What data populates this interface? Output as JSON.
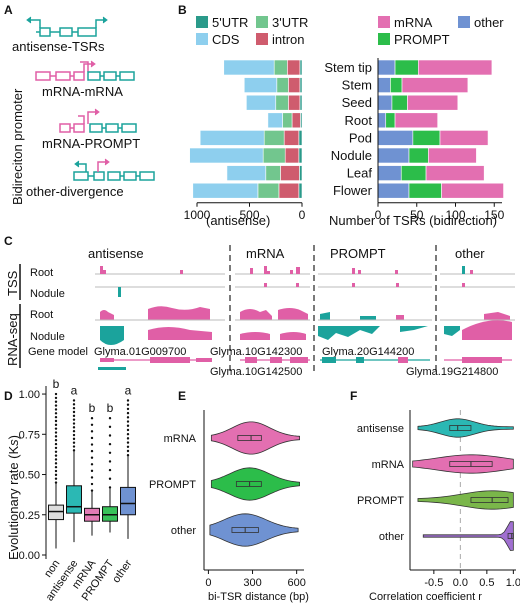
{
  "panels": [
    "A",
    "B",
    "C",
    "D",
    "E",
    "F"
  ],
  "colors": {
    "utr5": "#2a9a8a",
    "utr3": "#72c68e",
    "cds": "#8ecfee",
    "intron": "#cf5c6e",
    "mrna": "#e36fb1",
    "prompt": "#2cbd4a",
    "other": "#6f92d2",
    "teal": "#1ba39c",
    "pink": "#e05fa6",
    "grey": "#d0d0d0"
  },
  "panel_a": {
    "side_label": "Bidireciton promoter",
    "items": [
      "antisense-TSRs",
      "mRNA-mRNA",
      "mRNA-PROMPT",
      "other-divergence"
    ]
  },
  "panel_c": {
    "groups": [
      "antisense",
      "mRNA",
      "PROMPT",
      "other"
    ],
    "tss_label": "TSS",
    "rnaseq_label": "RNA-seq",
    "track_labels": [
      "Root",
      "Nodule",
      "Root",
      "Nodule"
    ],
    "gene_model_label": "Gene model",
    "genes": [
      "Glyma.01G009700",
      "Glyma.10G142300",
      "Glyma.10G142500",
      "Glyma.20G144200",
      "Glyma.19G214800"
    ]
  },
  "chart_data": [
    {
      "type": "bar",
      "panel": "B-left",
      "orientation": "horizontal",
      "stacked": true,
      "categories": [
        "Stem tip",
        "Stem",
        "Seed",
        "Root",
        "Pod",
        "Nodule",
        "Leaf",
        "Flower"
      ],
      "series": [
        {
          "name": "5'UTR",
          "values": [
            20,
            20,
            20,
            15,
            30,
            30,
            25,
            30
          ]
        },
        {
          "name": "3'UTR",
          "values": [
            125,
            110,
            120,
            90,
            190,
            210,
            140,
            200
          ]
        },
        {
          "name": "CDS",
          "values": [
            480,
            310,
            280,
            140,
            610,
            700,
            370,
            620
          ]
        },
        {
          "name": "intron",
          "values": [
            120,
            110,
            110,
            80,
            140,
            130,
            180,
            190
          ]
        }
      ],
      "xlabel": "(antisense)",
      "xticks": [
        1000,
        500,
        0
      ],
      "xlim": [
        1000,
        0
      ],
      "legend": "top"
    },
    {
      "type": "bar",
      "panel": "B-right",
      "orientation": "horizontal",
      "stacked": true,
      "categories": [
        "Stem tip",
        "Stem",
        "Seed",
        "Root",
        "Pod",
        "Nodule",
        "Leaf",
        "Flower"
      ],
      "series": [
        {
          "name": "other",
          "values": [
            22,
            16,
            18,
            10,
            45,
            40,
            30,
            40
          ]
        },
        {
          "name": "PROMPT",
          "values": [
            30,
            15,
            20,
            12,
            35,
            25,
            32,
            42
          ]
        },
        {
          "name": "mRNA",
          "values": [
            95,
            85,
            65,
            55,
            62,
            62,
            75,
            80
          ]
        }
      ],
      "xlabel": "Number of TSRs      (bidirection)",
      "xticks": [
        0,
        50,
        100,
        150
      ],
      "xlim": [
        0,
        160
      ],
      "legend": "top"
    },
    {
      "type": "box",
      "panel": "D",
      "categories": [
        "non",
        "antisense",
        "mRNA",
        "PROMPT",
        "other"
      ],
      "boxes": [
        {
          "q1": 0.22,
          "median": 0.27,
          "q3": 0.31,
          "whisker_low": 0.04,
          "whisker_high": 0.45,
          "sig": "b"
        },
        {
          "q1": 0.26,
          "median": 0.3,
          "q3": 0.43,
          "whisker_low": 0.08,
          "whisker_high": 0.65,
          "sig": "a"
        },
        {
          "q1": 0.21,
          "median": 0.25,
          "q3": 0.29,
          "whisker_low": 0.12,
          "whisker_high": 0.4,
          "sig": "b"
        },
        {
          "q1": 0.21,
          "median": 0.25,
          "q3": 0.3,
          "whisker_low": 0.14,
          "whisker_high": 0.42,
          "sig": "b"
        },
        {
          "q1": 0.25,
          "median": 0.32,
          "q3": 0.42,
          "whisker_low": 0.1,
          "whisker_high": 0.62,
          "sig": "a"
        }
      ],
      "ylabel": "Evolutionary rate (K",
      "ylabel_sub": "s",
      "ylabel_end": ")",
      "yticks": [
        0.0,
        0.25,
        0.5,
        0.75,
        1.0
      ],
      "ytick_labels": [
        "0.00",
        "0.25",
        "0.50",
        "0.75",
        "1.00"
      ],
      "ylim": [
        0,
        1.05
      ]
    },
    {
      "type": "violin",
      "panel": "E",
      "categories": [
        "mRNA",
        "PROMPT",
        "other"
      ],
      "violins": [
        {
          "median": 290,
          "q1": 200,
          "q3": 360,
          "min": 20,
          "max": 620
        },
        {
          "median": 280,
          "q1": 190,
          "q3": 360,
          "min": 20,
          "max": 620
        },
        {
          "median": 250,
          "q1": 160,
          "q3": 340,
          "min": 10,
          "max": 610
        }
      ],
      "xlabel": "bi-TSR distance (bp)",
      "xticks": [
        0,
        300,
        600
      ],
      "xlim": [
        -30,
        650
      ]
    },
    {
      "type": "violin",
      "panel": "F",
      "categories": [
        "antisense",
        "mRNA",
        "PROMPT",
        "other"
      ],
      "violins": [
        {
          "median": -0.05,
          "q1": -0.2,
          "q3": 0.2,
          "min": -0.8,
          "max": 1.0
        },
        {
          "median": 0.2,
          "q1": -0.2,
          "q3": 0.6,
          "min": -0.9,
          "max": 1.0
        },
        {
          "median": 0.6,
          "q1": 0.2,
          "q3": 0.9,
          "min": -0.8,
          "max": 1.0
        },
        {
          "median": 0.97,
          "q1": 0.9,
          "q3": 1.0,
          "min": -0.7,
          "max": 1.0
        }
      ],
      "xlabel": "Correlation coefficient r",
      "xticks": [
        -0.5,
        0,
        0.5,
        1
      ],
      "xtick_labels": [
        "-0.5",
        "0.0",
        "0.5",
        "1.0"
      ],
      "xlim": [
        -0.95,
        1.05
      ]
    }
  ]
}
